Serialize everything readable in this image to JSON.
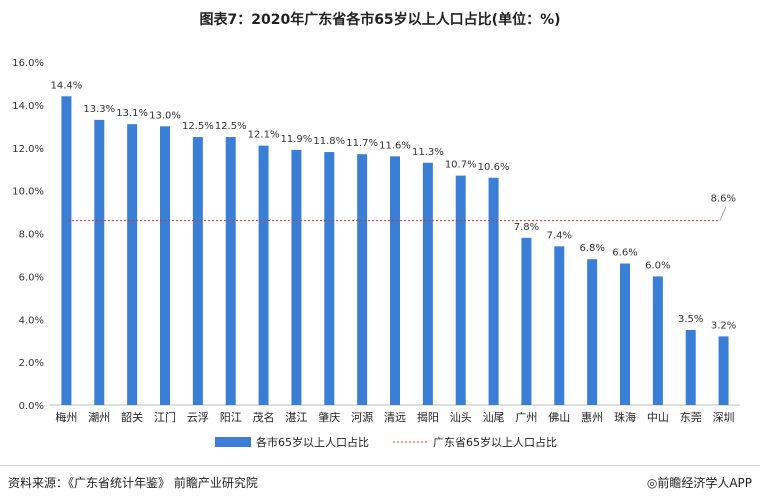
{
  "chart_data": {
    "type": "bar",
    "title": "图表7：2020年广东省各市65岁以上人口占比(单位：%)",
    "categories": [
      "梅州",
      "潮州",
      "韶关",
      "江门",
      "云浮",
      "阳江",
      "茂名",
      "湛江",
      "肇庆",
      "河源",
      "清远",
      "揭阳",
      "汕头",
      "汕尾",
      "广州",
      "佛山",
      "惠州",
      "珠海",
      "中山",
      "东莞",
      "深圳"
    ],
    "series": [
      {
        "name": "各市65岁以上人口占比",
        "values": [
          14.4,
          13.3,
          13.1,
          13.0,
          12.5,
          12.5,
          12.1,
          11.9,
          11.8,
          11.7,
          11.6,
          11.3,
          10.7,
          10.6,
          7.8,
          7.4,
          6.8,
          6.6,
          6.0,
          3.5,
          3.2
        ],
        "color": "#3a7fd5"
      }
    ],
    "value_labels": [
      "14.4%",
      "13.3%",
      "13.1%",
      "13.0%",
      "12.5%",
      "12.5%",
      "12.1%",
      "11.9%",
      "11.8%",
      "11.7%",
      "11.6%",
      "11.3%",
      "10.7%",
      "10.6%",
      "7.8%",
      "7.4%",
      "6.8%",
      "6.6%",
      "6.0%",
      "3.5%",
      "3.2%"
    ],
    "reference_line": {
      "name": "广东省65岁以上人口占比",
      "value": 8.6,
      "label": "8.6%",
      "color": "#d23a3a"
    },
    "ylim": [
      0,
      16
    ],
    "yticks": [
      0,
      2,
      4,
      6,
      8,
      10,
      12,
      14,
      16
    ],
    "ytick_labels": [
      "0.0%",
      "2.0%",
      "4.0%",
      "6.0%",
      "8.0%",
      "10.0%",
      "12.0%",
      "14.0%",
      "16.0%"
    ],
    "legend_position": "bottom",
    "grid": false
  },
  "footer": {
    "source": "资料来源：《广东省统计年鉴》 前瞻产业研究院",
    "brand": "◎前瞻经济学人APP"
  }
}
